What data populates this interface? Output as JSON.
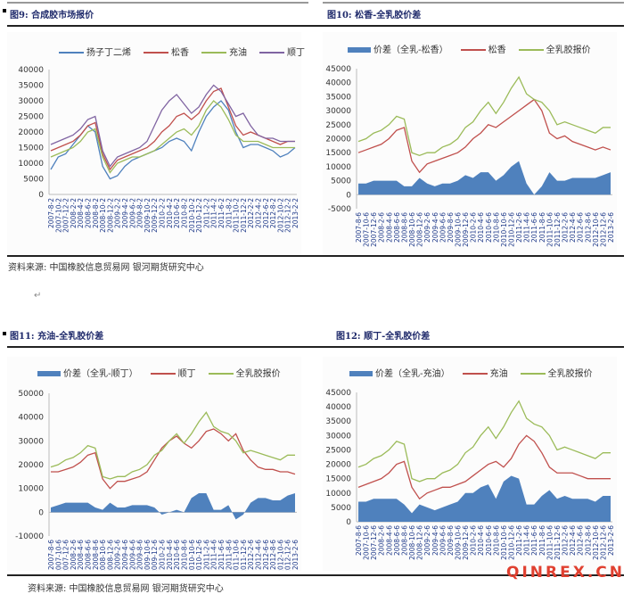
{
  "figures": [
    {
      "title": "图9:  合成胶市场报价"
    },
    {
      "title": "图10:  松香-全乳胶价差"
    },
    {
      "title": "图11: 充油-全乳胶价差"
    },
    {
      "title": "图12:  顺丁-全乳胶价差"
    }
  ],
  "source_top": "资料来源:  中国橡胶信息贸易网   银河期货研究中心",
  "source_bottom": "资料来源:  中国橡胶信息贸易网   银河期货研究中心",
  "return_mark": "↵",
  "watermark": "QINREX.CN",
  "chart_data": [
    {
      "type": "line",
      "title": "图9:  合成胶市场报价",
      "ylim": [
        0,
        40000
      ],
      "yticks": [
        0,
        5000,
        10000,
        15000,
        20000,
        25000,
        30000,
        35000,
        40000
      ],
      "categories": [
        "2007-8-2",
        "2007-10-2",
        "2007-12-2",
        "2008-2-2",
        "2008-4-2",
        "2008-6-2",
        "2008-8-2",
        "2008-10-2",
        "2008-12-2",
        "2009-2-2",
        "2009-4-2",
        "2009-6-2",
        "2009-8-2",
        "2009-10-2",
        "2009-12-2",
        "2010-2-2",
        "2010-4-2",
        "2010-6-2",
        "2010-8-2",
        "2010-10-2",
        "2010-12-2",
        "2011-2-2",
        "2011-4-2",
        "2011-6-2",
        "2011-8-2",
        "2011-10-2",
        "2011-12-2",
        "2012-2-2",
        "2012-4-2",
        "2012-6-2",
        "2012-8-2",
        "2012-10-2",
        "2012-12-2",
        "2013-2-2"
      ],
      "series": [
        {
          "name": "扬子丁二烯",
          "color": "#4f81bd",
          "kind": "line",
          "values": [
            8000,
            12000,
            13000,
            16000,
            19000,
            22000,
            20000,
            9000,
            5000,
            6000,
            9000,
            11000,
            12000,
            13000,
            14000,
            15000,
            17000,
            18000,
            17000,
            14000,
            20000,
            25000,
            28000,
            30000,
            27000,
            20000,
            15000,
            16000,
            16000,
            15000,
            14000,
            12000,
            13000,
            15000
          ]
        },
        {
          "name": "松香",
          "color": "#c0504d",
          "kind": "line",
          "values": [
            14000,
            15000,
            16000,
            17000,
            19000,
            22000,
            23000,
            13000,
            8000,
            11000,
            12000,
            13000,
            14000,
            15000,
            17000,
            20000,
            22000,
            25000,
            26000,
            24000,
            26000,
            30000,
            33000,
            34000,
            28000,
            22000,
            19000,
            20000,
            19000,
            18000,
            17000,
            16000,
            17000,
            17000
          ]
        },
        {
          "name": "充油",
          "color": "#9bbb59",
          "kind": "line",
          "values": [
            12000,
            13000,
            14000,
            15000,
            17000,
            20000,
            21000,
            12000,
            7000,
            10000,
            11000,
            12000,
            12000,
            13000,
            14000,
            16000,
            18000,
            20000,
            21000,
            19000,
            22000,
            27000,
            30000,
            28000,
            24000,
            19000,
            17000,
            17000,
            17000,
            16000,
            15000,
            15000,
            15000,
            15000
          ]
        },
        {
          "name": "顺丁",
          "color": "#8064a2",
          "kind": "line",
          "values": [
            16000,
            17000,
            18000,
            19000,
            21000,
            24000,
            25000,
            14000,
            9000,
            12000,
            13000,
            14000,
            15000,
            17000,
            22000,
            27000,
            30000,
            32000,
            29000,
            26000,
            28000,
            32000,
            35000,
            33000,
            29000,
            25000,
            26000,
            22000,
            19000,
            18000,
            18000,
            17000,
            17000,
            17000
          ]
        }
      ]
    },
    {
      "type": "line",
      "title": "图10:  松香-全乳胶价差",
      "ylim": [
        -5000,
        45000
      ],
      "yticks": [
        -5000,
        0,
        5000,
        10000,
        15000,
        20000,
        25000,
        30000,
        35000,
        40000,
        45000
      ],
      "categories": [
        "2007-8-6",
        "2007-10-6",
        "2007-12-6",
        "2008-2-6",
        "2008-4-6",
        "2008-6-6",
        "2008-8-6",
        "2008-10-6",
        "2008-12-6",
        "2009-2-6",
        "2009-4-6",
        "2009-6-6",
        "2009-8-6",
        "2009-10-6",
        "2009-12-6",
        "2010-2-6",
        "2010-4-6",
        "2010-6-6",
        "2010-8-6",
        "2010-10-6",
        "2010-12-6",
        "2011-2-6",
        "2011-4-6",
        "2011-6-6",
        "2011-8-6",
        "2011-10-6",
        "2011-12-6",
        "2012-2-6",
        "2012-4-6",
        "2012-6-6",
        "2012-8-6",
        "2012-10-6",
        "2012-12-6",
        "2013-2-6"
      ],
      "series": [
        {
          "name": "价差（全乳-松香）",
          "color": "#4f81bd",
          "kind": "area",
          "values": [
            4000,
            4000,
            5000,
            5000,
            5000,
            5000,
            3000,
            3000,
            6000,
            4000,
            3000,
            4000,
            4000,
            5000,
            7000,
            6000,
            8000,
            8000,
            5000,
            7000,
            10000,
            12000,
            4000,
            0,
            3000,
            8000,
            5000,
            5000,
            6000,
            6000,
            6000,
            6000,
            7000,
            8000
          ]
        },
        {
          "name": "松香",
          "color": "#c0504d",
          "kind": "line",
          "values": [
            15000,
            16000,
            17000,
            18000,
            20000,
            23000,
            24000,
            12000,
            8000,
            11000,
            12000,
            13000,
            14000,
            15000,
            17000,
            20000,
            22000,
            25000,
            24000,
            26000,
            28000,
            30000,
            32000,
            34000,
            30000,
            22000,
            20000,
            21000,
            19000,
            18000,
            17000,
            16000,
            17000,
            16000
          ]
        },
        {
          "name": "全乳胶报价",
          "color": "#9bbb59",
          "kind": "line",
          "values": [
            19000,
            20000,
            22000,
            23000,
            25000,
            28000,
            27000,
            15000,
            14000,
            15000,
            15000,
            17000,
            18000,
            20000,
            24000,
            26000,
            30000,
            33000,
            29000,
            33000,
            38000,
            42000,
            36000,
            34000,
            33000,
            30000,
            25000,
            26000,
            25000,
            24000,
            23000,
            22000,
            24000,
            24000
          ]
        }
      ]
    },
    {
      "type": "line",
      "title": "图11: 充油-全乳胶价差",
      "ylim": [
        -10000,
        50000
      ],
      "yticks": [
        -10000,
        0,
        10000,
        20000,
        30000,
        40000,
        50000
      ],
      "categories": [
        "2007-8-6",
        "2007-10-6",
        "2007-12-6",
        "2008-2-6",
        "2008-4-6",
        "2008-6-6",
        "2008-8-6",
        "2008-10-6",
        "2008-12-6",
        "2009-2-6",
        "2009-4-6",
        "2009-6-6",
        "2009-8-6",
        "2009-10-6",
        "2009-12-6",
        "2010-2-6",
        "2010-4-6",
        "2010-6-6",
        "2010-8-6",
        "2010-10-6",
        "2010-12-6",
        "2011-2-6",
        "2011-4-6",
        "2011-6-6",
        "2011-8-6",
        "2011-10-6",
        "2011-12-6",
        "2012-2-6",
        "2012-4-6",
        "2012-6-6",
        "2012-8-6",
        "2012-10-6",
        "2012-12-6",
        "2013-2-6"
      ],
      "series": [
        {
          "name": "价差（全乳-顺丁）",
          "color": "#4f81bd",
          "kind": "area",
          "values": [
            2000,
            3000,
            4000,
            4000,
            4000,
            4000,
            2000,
            1000,
            4000,
            2000,
            2000,
            3000,
            3000,
            3000,
            2000,
            -1000,
            0,
            1000,
            0,
            6000,
            8000,
            8000,
            1000,
            1000,
            3000,
            -3000,
            -1000,
            4000,
            6000,
            6000,
            5000,
            5000,
            7000,
            8000
          ]
        },
        {
          "name": "顺丁",
          "color": "#c0504d",
          "kind": "line",
          "values": [
            17000,
            17000,
            18000,
            19000,
            21000,
            24000,
            25000,
            14000,
            10000,
            13000,
            13000,
            14000,
            15000,
            17000,
            22000,
            27000,
            30000,
            32000,
            29000,
            27000,
            30000,
            34000,
            35000,
            33000,
            30000,
            33000,
            26000,
            22000,
            19000,
            18000,
            18000,
            17000,
            17000,
            16000
          ]
        },
        {
          "name": "全乳胶报价",
          "color": "#9bbb59",
          "kind": "line",
          "values": [
            19000,
            20000,
            22000,
            23000,
            25000,
            28000,
            27000,
            15000,
            14000,
            15000,
            15000,
            17000,
            18000,
            20000,
            24000,
            26000,
            30000,
            33000,
            29000,
            33000,
            38000,
            42000,
            36000,
            34000,
            33000,
            30000,
            25000,
            26000,
            25000,
            24000,
            23000,
            22000,
            24000,
            24000
          ]
        }
      ]
    },
    {
      "type": "line",
      "title": "图12:  顺丁-全乳胶价差",
      "ylim": [
        0,
        45000
      ],
      "yticks": [
        0,
        5000,
        10000,
        15000,
        20000,
        25000,
        30000,
        35000,
        40000,
        45000
      ],
      "categories": [
        "2007-8-6",
        "2007-10-6",
        "2007-12-6",
        "2008-2-6",
        "2008-4-6",
        "2008-6-6",
        "2008-8-6",
        "2008-10-6",
        "2008-12-6",
        "2009-2-6",
        "2009-4-6",
        "2009-6-6",
        "2009-8-6",
        "2009-10-6",
        "2009-12-6",
        "2010-2-6",
        "2010-4-6",
        "2010-6-6",
        "2010-8-6",
        "2010-10-6",
        "2010-12-6",
        "2011-2-6",
        "2011-4-6",
        "2011-6-6",
        "2011-8-6",
        "2011-10-6",
        "2011-12-6",
        "2012-2-6",
        "2012-4-6",
        "2012-6-6",
        "2012-8-6",
        "2012-10-6",
        "2012-12-6",
        "2013-2-6"
      ],
      "series": [
        {
          "name": "价差（全乳-充油）",
          "color": "#4f81bd",
          "kind": "area",
          "values": [
            7000,
            7000,
            8000,
            8000,
            8000,
            8000,
            6000,
            3000,
            6000,
            5000,
            4000,
            5000,
            6000,
            7000,
            10000,
            10000,
            12000,
            13000,
            8000,
            14000,
            16000,
            15000,
            6000,
            6000,
            9000,
            11000,
            8000,
            9000,
            8000,
            8000,
            8000,
            7000,
            9000,
            9000
          ]
        },
        {
          "name": "充油",
          "color": "#c0504d",
          "kind": "line",
          "values": [
            12000,
            13000,
            14000,
            15000,
            17000,
            20000,
            21000,
            12000,
            8000,
            10000,
            11000,
            12000,
            12000,
            13000,
            14000,
            16000,
            18000,
            20000,
            21000,
            19000,
            22000,
            27000,
            30000,
            28000,
            24000,
            19000,
            17000,
            17000,
            17000,
            16000,
            15000,
            15000,
            15000,
            15000
          ]
        },
        {
          "name": "全乳胶报价",
          "color": "#9bbb59",
          "kind": "line",
          "values": [
            19000,
            20000,
            22000,
            23000,
            25000,
            28000,
            27000,
            15000,
            14000,
            15000,
            15000,
            17000,
            18000,
            20000,
            24000,
            26000,
            30000,
            33000,
            29000,
            33000,
            38000,
            42000,
            36000,
            34000,
            33000,
            30000,
            25000,
            26000,
            25000,
            24000,
            23000,
            22000,
            24000,
            24000
          ]
        }
      ]
    }
  ]
}
